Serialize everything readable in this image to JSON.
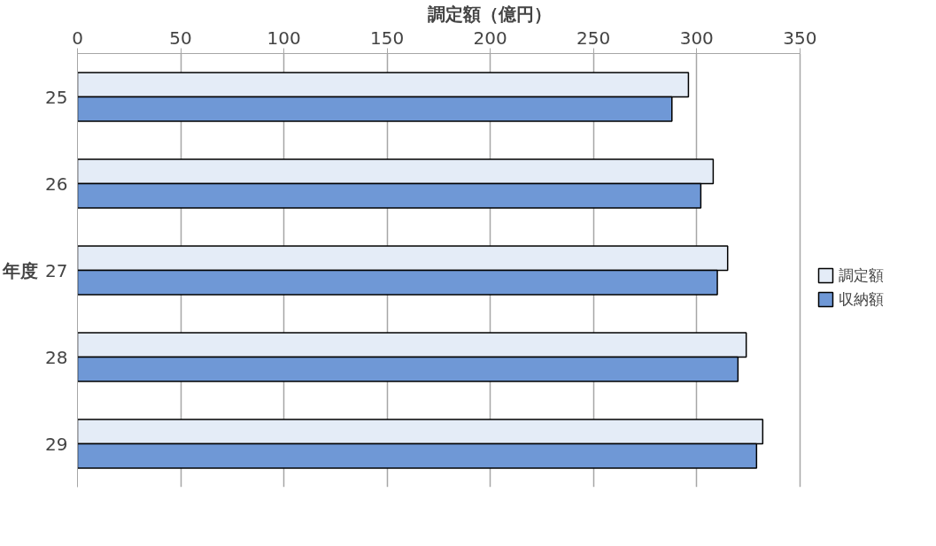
{
  "chart_data": {
    "type": "bar",
    "orientation": "horizontal",
    "xlabel": "調定額（億円）",
    "ylabel": "年度",
    "categories": [
      "25",
      "26",
      "27",
      "28",
      "29"
    ],
    "series": [
      {
        "name": "調定額",
        "color": "#e4ecf7",
        "values": [
          296,
          308,
          315,
          324,
          332
        ]
      },
      {
        "name": "収納額",
        "color": "#6f98d6",
        "values": [
          288,
          302,
          310,
          320,
          329
        ]
      }
    ],
    "xlim": [
      0,
      350
    ],
    "xticks": [
      0,
      50,
      100,
      150,
      200,
      250,
      300,
      350
    ],
    "grid": "x",
    "legend": "right"
  }
}
